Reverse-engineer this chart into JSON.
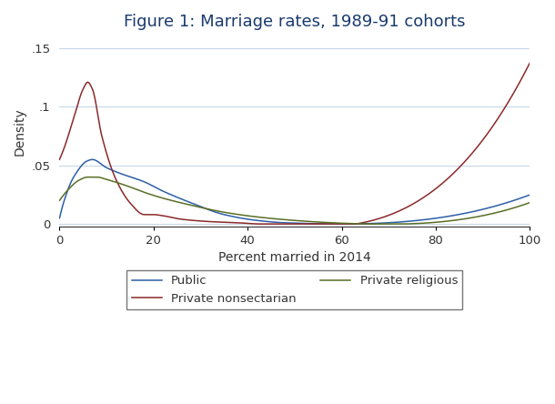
{
  "title": "Figure 1: Marriage rates, 1989-91 cohorts",
  "xlabel": "Percent married in 2014",
  "ylabel": "Density",
  "xlim": [
    0,
    100
  ],
  "ylim": [
    -0.002,
    0.16
  ],
  "yticks": [
    0,
    0.05,
    0.1,
    0.15
  ],
  "ytick_labels": [
    "0",
    ".05",
    ".1",
    ".15"
  ],
  "xticks": [
    0,
    20,
    40,
    60,
    80,
    100
  ],
  "title_color": "#1a3a6e",
  "title_fontsize": 13,
  "label_fontsize": 10,
  "tick_fontsize": 9.5,
  "colors": {
    "public": "#2c5fa8",
    "private_nonsectarian": "#8b2a2a",
    "private_religious": "#5a6e25"
  },
  "legend_labels": [
    "Public",
    "Private nonsectarian",
    "Private religious"
  ],
  "legend_text_color": "#333333",
  "background_color": "#ffffff",
  "grid_color": "#c8d8e8",
  "line_width": 1.1
}
